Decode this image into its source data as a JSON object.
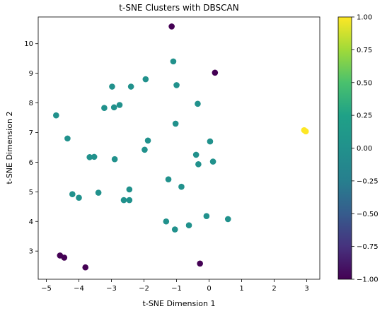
{
  "chart_data": {
    "type": "scatter",
    "title": "t-SNE Clusters with DBSCAN",
    "xlabel": "t-SNE Dimension 1",
    "ylabel": "t-SNE Dimension 2",
    "xlim": [
      -5.25,
      3.4
    ],
    "ylim": [
      2.05,
      10.9
    ],
    "xticks": [
      -5,
      -4,
      -3,
      -2,
      -1,
      0,
      1,
      2,
      3
    ],
    "yticks": [
      3,
      4,
      5,
      6,
      7,
      8,
      9,
      10
    ],
    "grid": false,
    "colormap": "viridis",
    "colorbar": {
      "range": [
        -1.0,
        1.0
      ],
      "ticks": [
        "1.00",
        "0.75",
        "0.50",
        "0.25",
        "0.00",
        "-0.25",
        "-0.50",
        "-0.75",
        "-1.00"
      ]
    },
    "colors": {
      "noise": "#440154",
      "cluster0": "#21918c",
      "cluster1": "#fde725"
    },
    "points": [
      {
        "x": -1.15,
        "y": 10.58,
        "label": -1
      },
      {
        "x": 0.18,
        "y": 9.02,
        "label": -1
      },
      {
        "x": -4.58,
        "y": 2.85,
        "label": -1
      },
      {
        "x": -4.45,
        "y": 2.78,
        "label": -1
      },
      {
        "x": -3.8,
        "y": 2.45,
        "label": -1
      },
      {
        "x": -0.28,
        "y": 2.58,
        "label": -1
      },
      {
        "x": -1.1,
        "y": 9.4,
        "label": 0
      },
      {
        "x": -1.95,
        "y": 8.8,
        "label": 0
      },
      {
        "x": -2.98,
        "y": 8.55,
        "label": 0
      },
      {
        "x": -2.4,
        "y": 8.55,
        "label": 0
      },
      {
        "x": -1.0,
        "y": 8.6,
        "label": 0
      },
      {
        "x": -0.35,
        "y": 7.97,
        "label": 0
      },
      {
        "x": -2.75,
        "y": 7.93,
        "label": 0
      },
      {
        "x": -3.22,
        "y": 7.83,
        "label": 0
      },
      {
        "x": -2.92,
        "y": 7.85,
        "label": 0
      },
      {
        "x": -4.7,
        "y": 7.58,
        "label": 0
      },
      {
        "x": -1.03,
        "y": 7.3,
        "label": 0
      },
      {
        "x": -4.35,
        "y": 6.8,
        "label": 0
      },
      {
        "x": -1.88,
        "y": 6.73,
        "label": 0
      },
      {
        "x": 0.03,
        "y": 6.7,
        "label": 0
      },
      {
        "x": -1.98,
        "y": 6.42,
        "label": 0
      },
      {
        "x": -0.4,
        "y": 6.25,
        "label": 0
      },
      {
        "x": -3.67,
        "y": 6.17,
        "label": 0
      },
      {
        "x": -3.53,
        "y": 6.18,
        "label": 0
      },
      {
        "x": -2.9,
        "y": 6.1,
        "label": 0
      },
      {
        "x": 0.12,
        "y": 6.02,
        "label": 0
      },
      {
        "x": -0.33,
        "y": 5.93,
        "label": 0
      },
      {
        "x": -1.25,
        "y": 5.42,
        "label": 0
      },
      {
        "x": -0.85,
        "y": 5.17,
        "label": 0
      },
      {
        "x": -2.45,
        "y": 5.08,
        "label": 0
      },
      {
        "x": -3.4,
        "y": 4.97,
        "label": 0
      },
      {
        "x": -4.2,
        "y": 4.92,
        "label": 0
      },
      {
        "x": -4.0,
        "y": 4.8,
        "label": 0
      },
      {
        "x": -2.62,
        "y": 4.72,
        "label": 0
      },
      {
        "x": -2.45,
        "y": 4.72,
        "label": 0
      },
      {
        "x": -0.08,
        "y": 4.18,
        "label": 0
      },
      {
        "x": 0.58,
        "y": 4.08,
        "label": 0
      },
      {
        "x": -1.32,
        "y": 4.0,
        "label": 0
      },
      {
        "x": -0.62,
        "y": 3.87,
        "label": 0
      },
      {
        "x": -1.05,
        "y": 3.73,
        "label": 0
      },
      {
        "x": 2.92,
        "y": 7.08,
        "label": 1
      },
      {
        "x": 2.97,
        "y": 7.04,
        "label": 1
      }
    ]
  }
}
